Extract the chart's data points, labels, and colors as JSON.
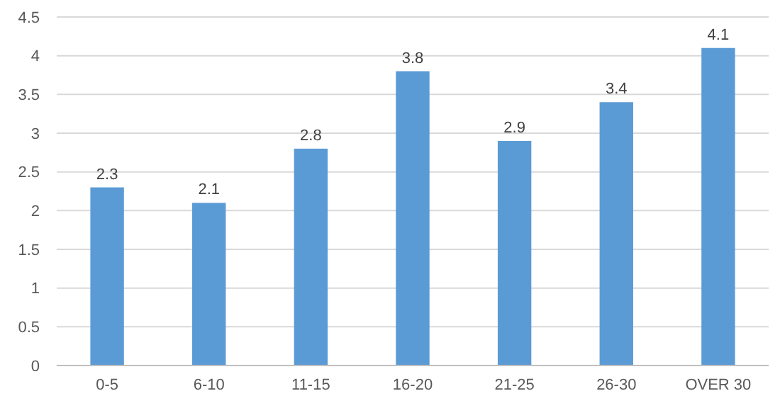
{
  "chart_data": {
    "type": "bar",
    "categories": [
      "0-5",
      "6-10",
      "11-15",
      "16-20",
      "21-25",
      "26-30",
      "OVER 30"
    ],
    "values": [
      2.3,
      2.1,
      2.8,
      3.8,
      2.9,
      3.4,
      4.1
    ],
    "color": "#5b9bd5",
    "ylim": [
      0,
      4.5
    ],
    "yticks": [
      0,
      0.5,
      1,
      1.5,
      2,
      2.5,
      3,
      3.5,
      4,
      4.5
    ],
    "grid": "y",
    "data_labels": true
  }
}
